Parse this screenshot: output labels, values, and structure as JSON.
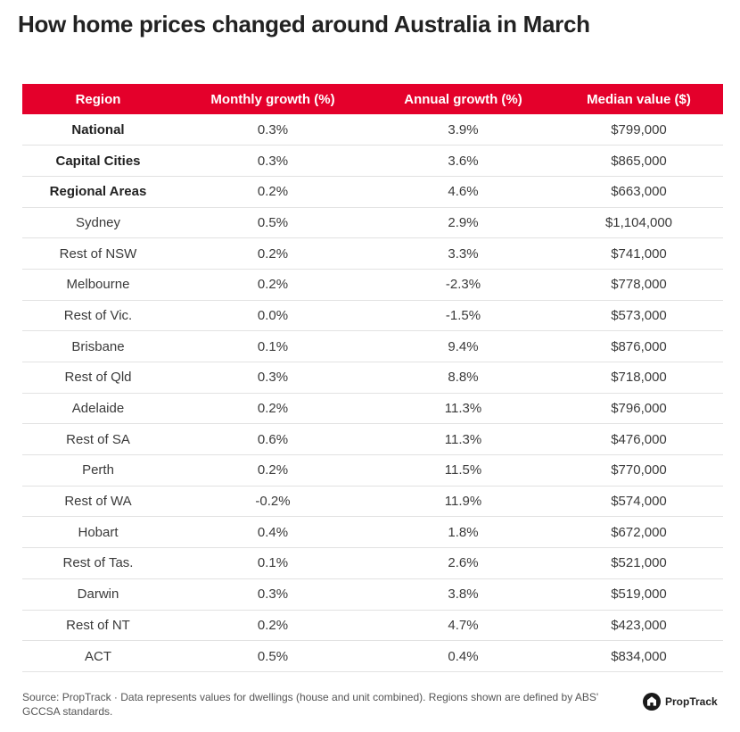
{
  "title": "How home prices changed around Australia in March",
  "chart_data": {
    "type": "table",
    "title": "How home prices changed around Australia in March",
    "columns": [
      "Region",
      "Monthly growth (%)",
      "Annual growth (%)",
      "Median value ($)"
    ],
    "rows": [
      {
        "region": "National",
        "monthly": "0.3%",
        "annual": "3.9%",
        "median": "$799,000",
        "bold": true
      },
      {
        "region": "Capital Cities",
        "monthly": "0.3%",
        "annual": "3.6%",
        "median": "$865,000",
        "bold": true
      },
      {
        "region": "Regional Areas",
        "monthly": "0.2%",
        "annual": "4.6%",
        "median": "$663,000",
        "bold": true
      },
      {
        "region": "Sydney",
        "monthly": "0.5%",
        "annual": "2.9%",
        "median": "$1,104,000",
        "bold": false
      },
      {
        "region": "Rest of NSW",
        "monthly": "0.2%",
        "annual": "3.3%",
        "median": "$741,000",
        "bold": false
      },
      {
        "region": "Melbourne",
        "monthly": "0.2%",
        "annual": "-2.3%",
        "median": "$778,000",
        "bold": false
      },
      {
        "region": "Rest of Vic.",
        "monthly": "0.0%",
        "annual": "-1.5%",
        "median": "$573,000",
        "bold": false
      },
      {
        "region": "Brisbane",
        "monthly": "0.1%",
        "annual": "9.4%",
        "median": "$876,000",
        "bold": false
      },
      {
        "region": "Rest of Qld",
        "monthly": "0.3%",
        "annual": "8.8%",
        "median": "$718,000",
        "bold": false
      },
      {
        "region": "Adelaide",
        "monthly": "0.2%",
        "annual": "11.3%",
        "median": "$796,000",
        "bold": false
      },
      {
        "region": "Rest of SA",
        "monthly": "0.6%",
        "annual": "11.3%",
        "median": "$476,000",
        "bold": false
      },
      {
        "region": "Perth",
        "monthly": "0.2%",
        "annual": "11.5%",
        "median": "$770,000",
        "bold": false
      },
      {
        "region": "Rest of WA",
        "monthly": "-0.2%",
        "annual": "11.9%",
        "median": "$574,000",
        "bold": false
      },
      {
        "region": "Hobart",
        "monthly": "0.4%",
        "annual": "1.8%",
        "median": "$672,000",
        "bold": false
      },
      {
        "region": "Rest of Tas.",
        "monthly": "0.1%",
        "annual": "2.6%",
        "median": "$521,000",
        "bold": false
      },
      {
        "region": "Darwin",
        "monthly": "0.3%",
        "annual": "3.8%",
        "median": "$519,000",
        "bold": false
      },
      {
        "region": "Rest of NT",
        "monthly": "0.2%",
        "annual": "4.7%",
        "median": "$423,000",
        "bold": false
      },
      {
        "region": "ACT",
        "monthly": "0.5%",
        "annual": "0.4%",
        "median": "$834,000",
        "bold": false
      }
    ]
  },
  "footer": {
    "source": "Source: PropTrack · Data represents values for dwellings (house and unit combined). Regions shown are defined by ABS' GCCSA standards.",
    "logo_text": "PropTrack",
    "logo_icon": "proptrack-logo-icon"
  },
  "colors": {
    "header_bg": "#e4002b",
    "header_text": "#ffffff",
    "row_divider": "#e2e2e2"
  }
}
